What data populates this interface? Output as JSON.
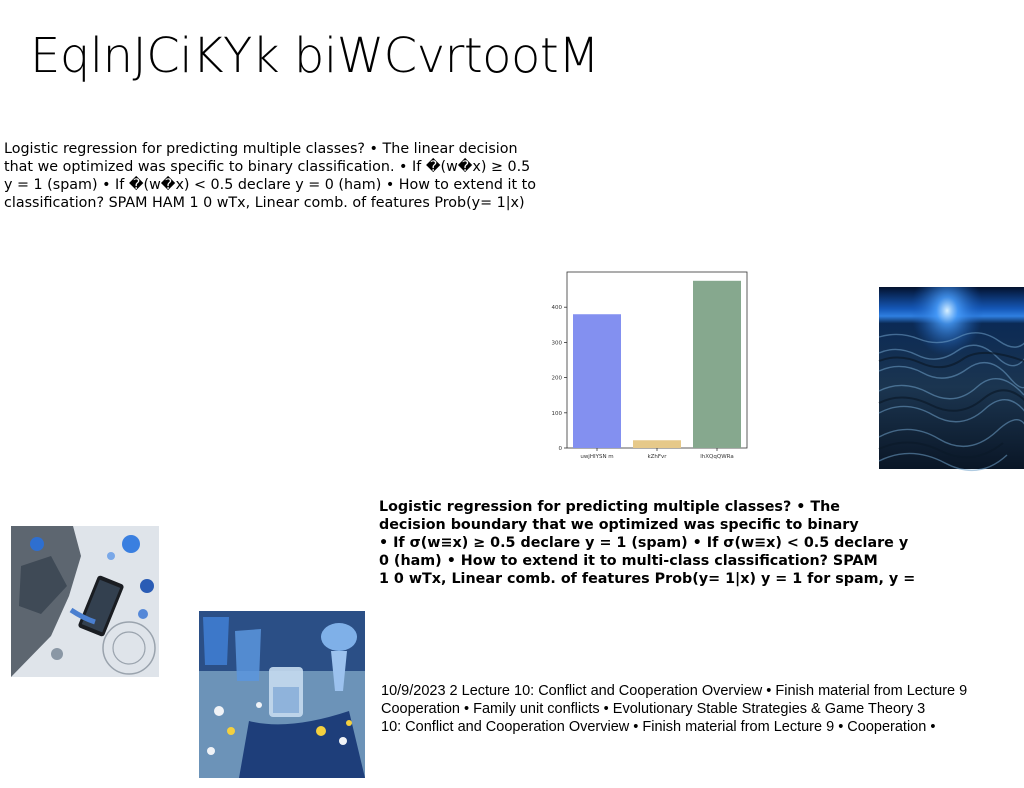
{
  "slide": {
    "title": "EqlnJCiKYk biWCvrtootM",
    "para1_lines": [
      "Logistic regression for predicting multiple classes? • The linear decision",
      "that we optimized was specific to binary classification. • If �(w�x) ≥ 0.5",
      "y = 1 (spam) • If �(w�x) < 0.5 declare y = 0 (ham) • How to extend it to",
      "classification? SPAM HAM 1 0 wTx, Linear comb. of features Prob(y= 1|x)"
    ],
    "para2_lines": [
      "Logistic regression for predicting multiple classes? • The",
      "decision boundary that we optimized was specific to binary",
      "• If σ(w≡x) ≥ 0.5 declare y = 1 (spam) • If σ(w≡x) < 0.5 declare y",
      "0 (ham) • How to extend it to multi-class classification? SPAM",
      "1 0 wTx, Linear comb. of features Prob(y= 1|x) y = 1 for spam, y ="
    ],
    "para3_lines": [
      "10/9/2023 2 Lecture 10: Conflict and Cooperation Overview • Finish material from Lecture 9",
      "Cooperation • Family unit conflicts • Evolutionary Stable Strategies & Game Theory 3",
      "10: Conflict and Cooperation Overview • Finish material from Lecture 9 • Cooperation •"
    ]
  },
  "chart_data": {
    "type": "bar",
    "categories": [
      "uwjHIYSN m",
      "kZhFvr",
      "lhXQqQWRa"
    ],
    "values": [
      380,
      22,
      475
    ],
    "colors": [
      "#8390f0",
      "#e6c98a",
      "#86a88e"
    ],
    "yticks": [
      0,
      100,
      200,
      300,
      400
    ],
    "ylim": [
      0,
      500
    ],
    "title": "",
    "xlabel": "",
    "ylabel": ""
  },
  "images": {
    "water": "dark blue ocean water surface at dusk",
    "lab1": "person using tablet with lab glassware in blue tones",
    "lab2": "blue laboratory glassware with liquids and pills"
  }
}
